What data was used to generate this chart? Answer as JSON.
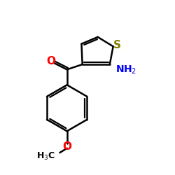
{
  "bg_color": "#ffffff",
  "bond_color": "#000000",
  "O_color": "#ff0000",
  "S_color": "#808000",
  "N_color": "#0000ff",
  "line_width": 1.8,
  "fig_size": [
    2.5,
    2.5
  ],
  "dpi": 100,
  "xlim": [
    0,
    10
  ],
  "ylim": [
    0,
    10
  ]
}
